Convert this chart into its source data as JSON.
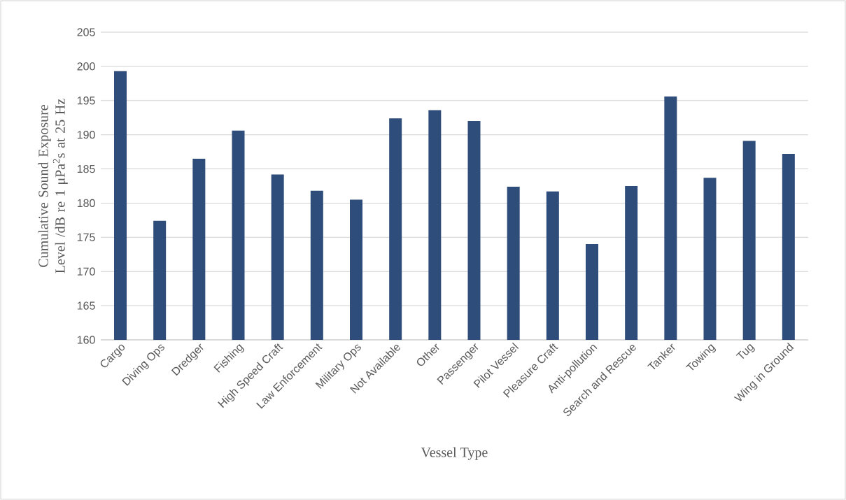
{
  "chart_data": {
    "type": "bar",
    "categories": [
      "Cargo",
      "Diving Ops",
      "Dredger",
      "Fishing",
      "High Speed Craft",
      "Law Enforcement",
      "Military Ops",
      "Not Available",
      "Other",
      "Passenger",
      "Pilot Vessel",
      "Pleasure Craft",
      "Anti-pollution",
      "Search and Rescue",
      "Tanker",
      "Towing",
      "Tug",
      "Wing in Ground"
    ],
    "values": [
      199.3,
      177.4,
      186.5,
      190.6,
      184.2,
      181.8,
      180.5,
      192.4,
      193.6,
      192.0,
      182.4,
      181.7,
      174.0,
      182.5,
      195.6,
      183.7,
      189.1,
      187.2
    ],
    "color": "#2e4d7b",
    "xlabel": "Vessel Type",
    "ylabel": "Cumulative Sound Exposure Level /dB re 1 μPa$^{2}$s at 25 Hz",
    "ylim": [
      160,
      205
    ],
    "yticks": [
      160,
      165,
      170,
      175,
      180,
      185,
      190,
      195,
      200,
      205
    ],
    "grid": "y"
  }
}
